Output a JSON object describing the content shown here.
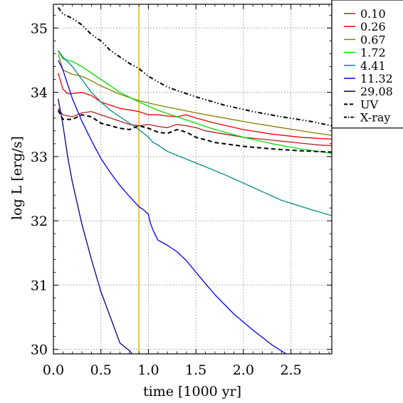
{
  "chart_data": {
    "type": "line",
    "xlabel": "time [1000 yr]",
    "ylabel": "log L [erg/s]",
    "xlim": [
      0.0,
      2.93
    ],
    "ylim": [
      29.93,
      35.37
    ],
    "xticks": [
      0.0,
      0.5,
      1.0,
      1.5,
      2.0,
      2.5
    ],
    "xtick_labels": [
      "0.0",
      "0.5",
      "1.0",
      "1.5",
      "2.0",
      "2.5"
    ],
    "yticks": [
      30,
      31,
      32,
      33,
      34,
      35
    ],
    "ytick_labels": [
      "30",
      "31",
      "32",
      "33",
      "34",
      "35"
    ],
    "grid": true,
    "legend_position": "top-right",
    "vertical_line": {
      "x": 0.9,
      "color": "#e6b800"
    },
    "series": [
      {
        "name": "0.10",
        "color": "#b22222",
        "style": "solid",
        "x": [
          0.05,
          0.1,
          0.2,
          0.3,
          0.4,
          0.5,
          0.6,
          0.7,
          0.8,
          0.9,
          1.0,
          1.1,
          1.2,
          1.3,
          1.4,
          1.5,
          1.6,
          1.8,
          2.0,
          2.2,
          2.4,
          2.6,
          2.8,
          2.93
        ],
        "y": [
          33.75,
          33.65,
          33.62,
          33.68,
          33.7,
          33.65,
          33.6,
          33.55,
          33.5,
          33.48,
          33.5,
          33.47,
          33.45,
          33.5,
          33.48,
          33.45,
          33.4,
          33.35,
          33.3,
          33.27,
          33.24,
          33.21,
          33.18,
          33.17
        ]
      },
      {
        "name": "0.26",
        "color": "#ff0000",
        "style": "solid",
        "x": [
          0.05,
          0.1,
          0.15,
          0.2,
          0.3,
          0.4,
          0.5,
          0.7,
          0.9,
          1.0,
          1.1,
          1.2,
          1.3,
          1.4,
          1.5,
          1.7,
          2.0,
          2.3,
          2.6,
          2.93
        ],
        "y": [
          34.3,
          34.05,
          33.98,
          33.98,
          34.0,
          33.95,
          33.85,
          33.75,
          33.7,
          33.65,
          33.65,
          33.63,
          33.62,
          33.65,
          33.6,
          33.52,
          33.42,
          33.35,
          33.3,
          33.27
        ]
      },
      {
        "name": "0.67",
        "color": "#808000",
        "style": "solid",
        "x": [
          0.05,
          0.1,
          0.2,
          0.3,
          0.4,
          0.5,
          0.7,
          0.9,
          1.1,
          1.3,
          1.5,
          1.8,
          2.1,
          2.4,
          2.7,
          2.93
        ],
        "y": [
          34.6,
          34.35,
          34.28,
          34.25,
          34.18,
          34.1,
          33.97,
          33.87,
          33.8,
          33.74,
          33.68,
          33.6,
          33.52,
          33.45,
          33.38,
          33.33
        ]
      },
      {
        "name": "1.72",
        "color": "#00dd00",
        "style": "solid",
        "x": [
          0.05,
          0.1,
          0.2,
          0.3,
          0.4,
          0.5,
          0.7,
          0.9,
          1.1,
          1.3,
          1.5,
          1.7,
          2.0,
          2.3,
          2.6,
          2.93
        ],
        "y": [
          34.65,
          34.52,
          34.48,
          34.4,
          34.3,
          34.2,
          34.0,
          33.85,
          33.72,
          33.62,
          33.52,
          33.42,
          33.3,
          33.2,
          33.12,
          33.05
        ]
      },
      {
        "name": "4.41",
        "color": "#008b8b",
        "style": "solid",
        "x": [
          0.05,
          0.1,
          0.2,
          0.3,
          0.4,
          0.5,
          0.6,
          0.7,
          0.8,
          0.9,
          1.0,
          1.05,
          1.1,
          1.2,
          1.5,
          1.8,
          2.1,
          2.4,
          2.7,
          2.93
        ],
        "y": [
          34.65,
          34.55,
          34.4,
          34.2,
          34.0,
          33.85,
          33.72,
          33.62,
          33.52,
          33.42,
          33.3,
          33.22,
          33.18,
          33.08,
          32.9,
          32.72,
          32.52,
          32.32,
          32.18,
          32.08
        ]
      },
      {
        "name": "11.32",
        "color": "#0000ff",
        "style": "solid",
        "x": [
          0.05,
          0.1,
          0.2,
          0.3,
          0.4,
          0.5,
          0.6,
          0.7,
          0.8,
          0.9,
          0.95,
          1.0,
          1.02,
          1.05,
          1.1,
          1.2,
          1.3,
          1.4,
          1.5,
          1.7,
          1.9,
          2.1,
          2.3,
          2.45
        ],
        "y": [
          34.5,
          34.35,
          33.9,
          33.55,
          33.25,
          32.97,
          32.75,
          32.55,
          32.38,
          32.22,
          32.17,
          32.1,
          31.97,
          31.85,
          31.7,
          31.62,
          31.52,
          31.38,
          31.2,
          30.85,
          30.55,
          30.3,
          30.07,
          29.93
        ]
      },
      {
        "name": "29.08",
        "color": "#00008b",
        "style": "solid",
        "x": [
          0.05,
          0.1,
          0.15,
          0.2,
          0.3,
          0.4,
          0.5,
          0.6,
          0.7,
          0.8,
          0.83
        ],
        "y": [
          33.9,
          33.5,
          33.0,
          32.6,
          31.95,
          31.4,
          30.9,
          30.5,
          30.1,
          29.98,
          29.93
        ]
      },
      {
        "name": "UV",
        "color": "#000000",
        "style": "dashed",
        "x": [
          0.05,
          0.1,
          0.2,
          0.3,
          0.4,
          0.5,
          0.6,
          0.7,
          0.8,
          0.9,
          1.0,
          1.1,
          1.2,
          1.3,
          1.4,
          1.5,
          1.7,
          2.0,
          2.3,
          2.6,
          2.93
        ],
        "y": [
          33.72,
          33.58,
          33.58,
          33.65,
          33.62,
          33.52,
          33.48,
          33.44,
          33.42,
          33.48,
          33.44,
          33.38,
          33.36,
          33.42,
          33.38,
          33.3,
          33.22,
          33.16,
          33.12,
          33.09,
          33.07
        ]
      },
      {
        "name": "X-ray",
        "color": "#000000",
        "style": "dashdot",
        "x": [
          0.05,
          0.1,
          0.2,
          0.3,
          0.4,
          0.5,
          0.6,
          0.7,
          0.8,
          0.9,
          1.0,
          1.2,
          1.5,
          1.8,
          2.1,
          2.4,
          2.7,
          2.93
        ],
        "y": [
          35.32,
          35.22,
          35.15,
          35.05,
          34.9,
          34.8,
          34.65,
          34.55,
          34.45,
          34.37,
          34.25,
          34.08,
          33.93,
          33.8,
          33.7,
          33.62,
          33.55,
          33.48
        ]
      }
    ]
  }
}
